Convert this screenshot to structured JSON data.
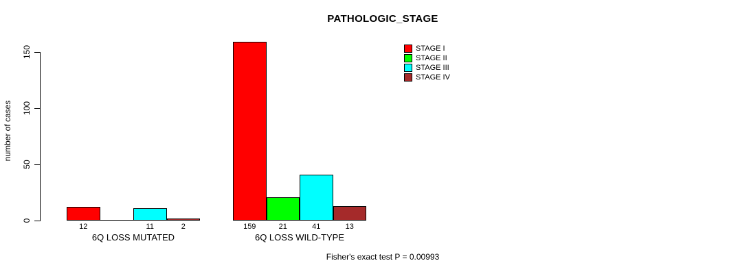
{
  "chart_data": {
    "type": "bar",
    "title": "PATHOLOGIC_STAGE",
    "ylabel": "number of cases",
    "xlabel": "",
    "categories": [
      "6Q LOSS MUTATED",
      "6Q LOSS WILD-TYPE"
    ],
    "series": [
      {
        "name": "STAGE I",
        "color": "#FF0000",
        "values": [
          12,
          159
        ]
      },
      {
        "name": "STAGE II",
        "color": "#00FF00",
        "values": [
          0,
          21
        ]
      },
      {
        "name": "STAGE III",
        "color": "#00FFFF",
        "values": [
          11,
          41
        ]
      },
      {
        "name": "STAGE IV",
        "color": "#A52A2A",
        "values": [
          2,
          13
        ]
      }
    ],
    "yticks": [
      0,
      50,
      100,
      150
    ],
    "ylim": [
      0,
      160
    ],
    "grid": false,
    "legend_position": "top-right",
    "bar_value_labels": true,
    "zero_bars_drawn_as_flat_line": true,
    "zero_bars_unlabeled": true,
    "footnote": "Fisher's exact test P = 0.00993",
    "axis_color": "#000000",
    "background_color": "#FFFFFF"
  }
}
